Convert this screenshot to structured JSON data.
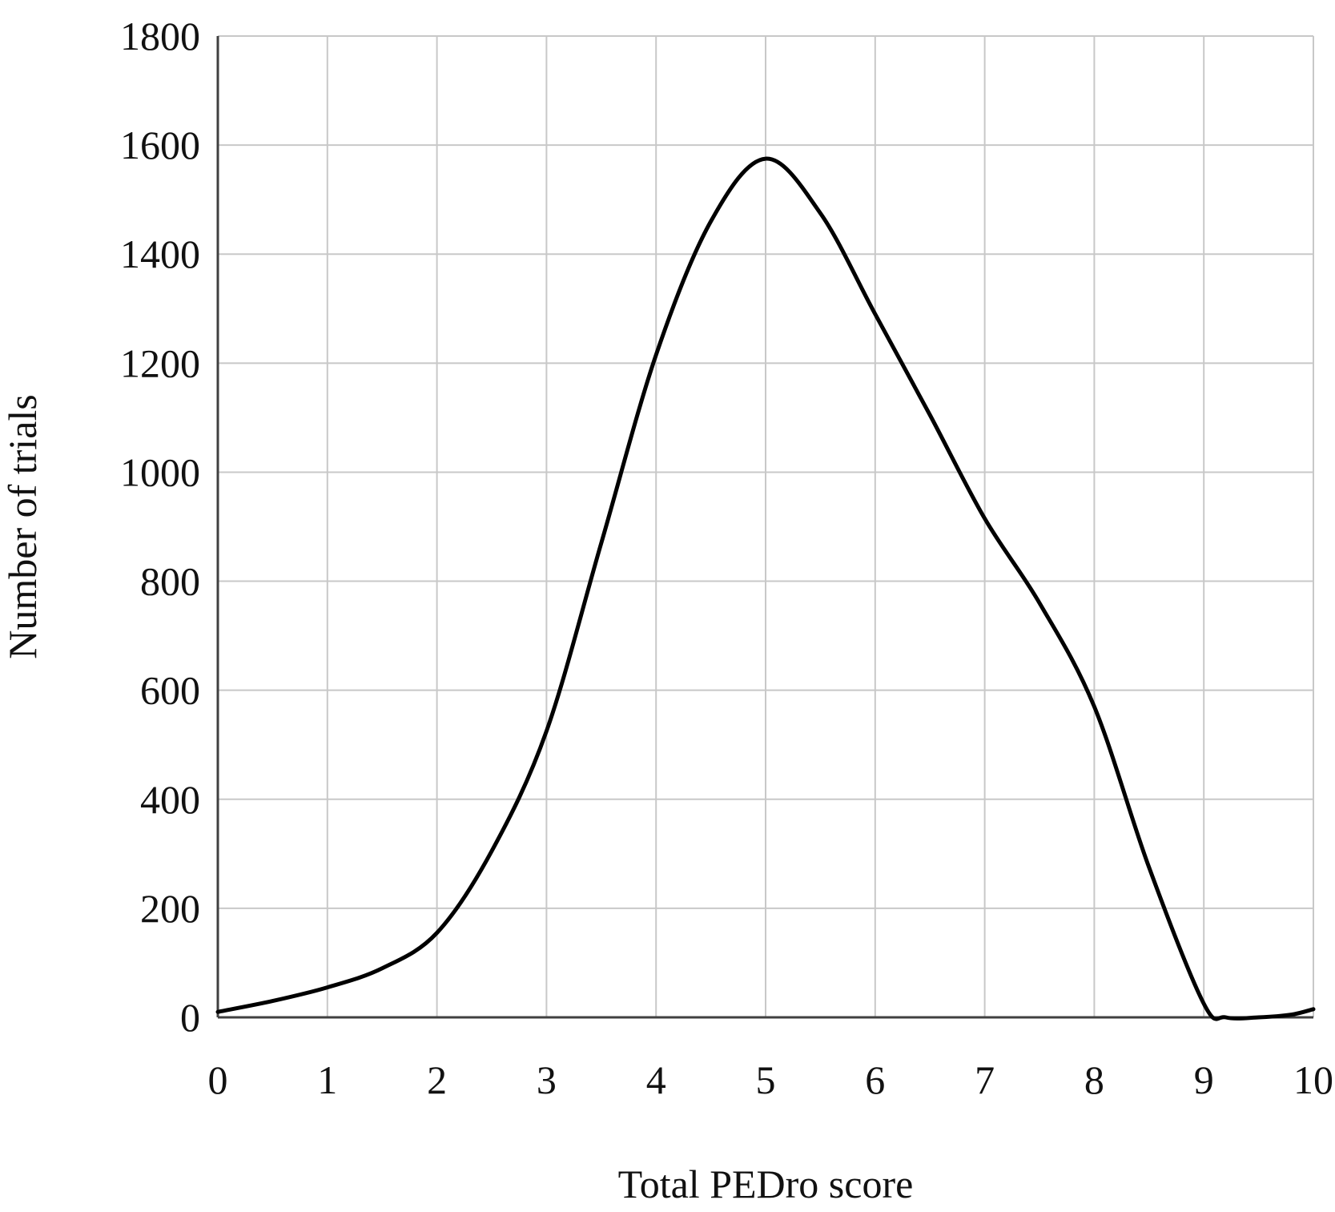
{
  "chart_data": {
    "type": "line",
    "title": "",
    "xlabel": "Total PEDro score",
    "ylabel": "Number of trials",
    "xlim": [
      0,
      10
    ],
    "ylim": [
      0,
      1800
    ],
    "x_ticks": [
      0,
      1,
      2,
      3,
      4,
      5,
      6,
      7,
      8,
      9,
      10
    ],
    "y_ticks": [
      0,
      200,
      400,
      600,
      800,
      1000,
      1200,
      1400,
      1600,
      1800
    ],
    "grid": true,
    "legend": "none",
    "line_color": "#000000",
    "series": [
      {
        "x": [
          0,
          0.5,
          1,
          1.5,
          2,
          2.5,
          3,
          3.5,
          4,
          4.5,
          5,
          5.5,
          6,
          6.5,
          7,
          7.5,
          8,
          8.5,
          9,
          9.2,
          9.5,
          9.8,
          10
        ],
        "values": [
          10,
          30,
          55,
          90,
          155,
          305,
          525,
          870,
          1215,
          1460,
          1575,
          1475,
          1290,
          1105,
          915,
          760,
          570,
          275,
          25,
          0,
          0,
          5,
          15
        ]
      }
    ]
  }
}
